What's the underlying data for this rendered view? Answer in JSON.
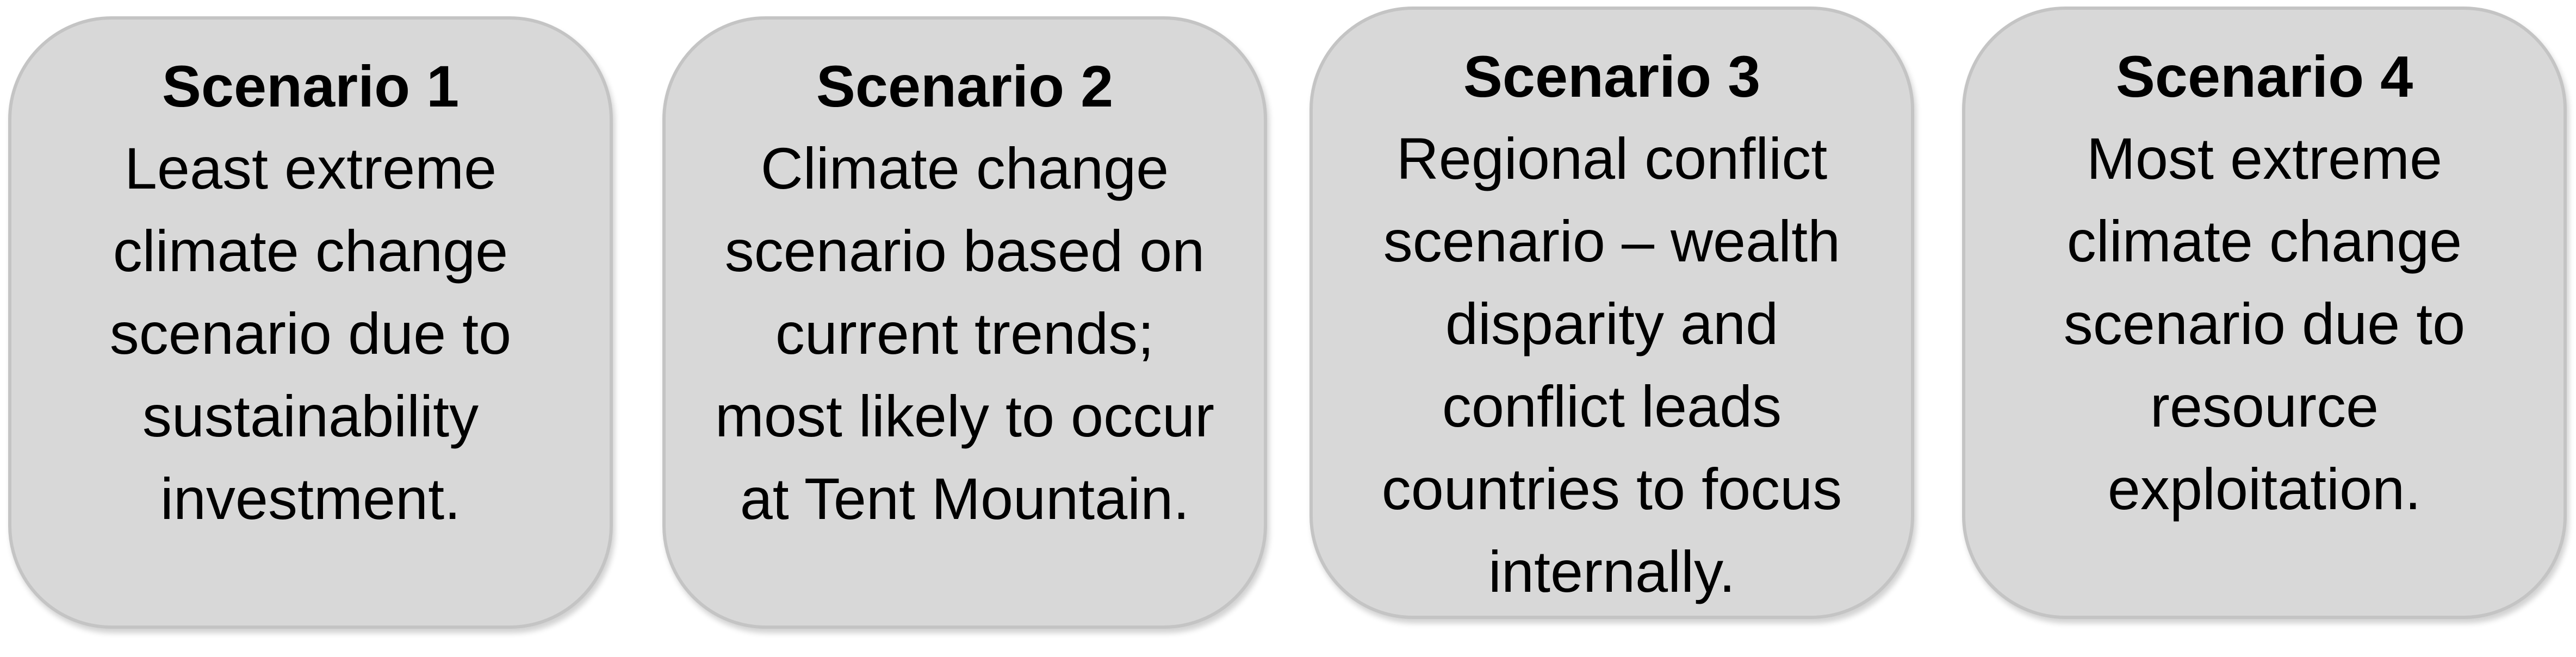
{
  "scenarios": [
    {
      "title": "Scenario 1",
      "body": "Least extreme\nclimate change\nscenario due to\nsustainability\ninvestment."
    },
    {
      "title": "Scenario 2",
      "body": "Climate change\nscenario based on\ncurrent trends;\nmost likely to occur\nat Tent Mountain."
    },
    {
      "title": "Scenario 3",
      "body": "Regional conflict\nscenario – wealth\ndisparity and\nconflict leads\ncountries to focus\ninternally."
    },
    {
      "title": "Scenario 4",
      "body": "Most extreme\nclimate change\nscenario due to\nresource\nexploitation."
    }
  ],
  "colors": {
    "card_fill": "#d8d8d8",
    "card_border": "#c4c4c4",
    "text": "#000000"
  }
}
